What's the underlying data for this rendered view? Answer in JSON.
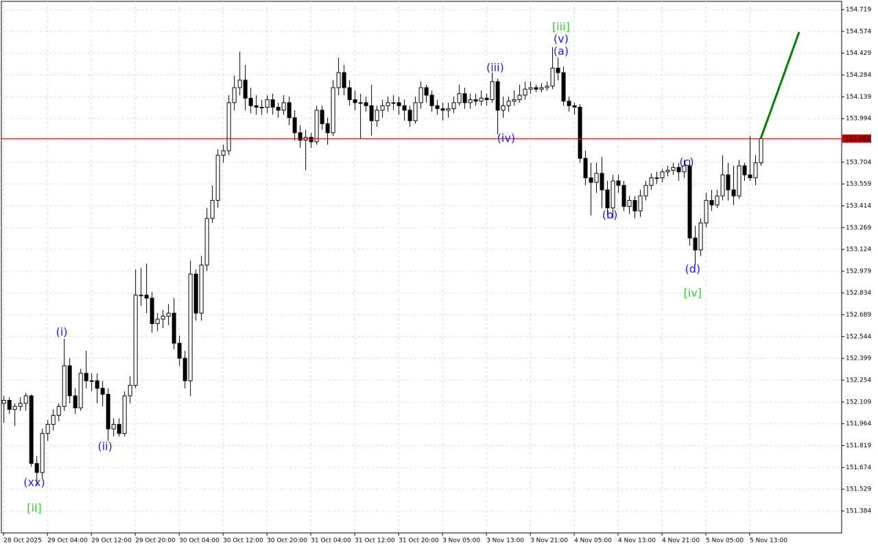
{
  "chart_data": {
    "type": "candlestick",
    "up_color": "#ffffff",
    "down_color": "#000000",
    "grid": true,
    "grid_color": "#e0e0e0",
    "xlim": [
      -0.4,
      152.75
    ],
    "ylim": [
      151.238,
      154.774
    ],
    "yticks": [
      154.719,
      154.574,
      154.429,
      154.284,
      154.139,
      153.994,
      153.849,
      153.704,
      153.559,
      153.414,
      153.269,
      153.124,
      152.979,
      152.834,
      152.689,
      152.544,
      152.399,
      152.254,
      152.109,
      151.964,
      151.819,
      151.674,
      151.529,
      151.384
    ],
    "xticks": [
      {
        "value": 0,
        "label": "28 Oct 2025"
      },
      {
        "value": 8,
        "label": "29 Oct 04:00"
      },
      {
        "value": 16,
        "label": "29 Oct 12:00"
      },
      {
        "value": 24,
        "label": "29 Oct 20:00"
      },
      {
        "value": 32,
        "label": "30 Oct 04:00"
      },
      {
        "value": 40,
        "label": "30 Oct 12:00"
      },
      {
        "value": 48,
        "label": "30 Oct 20:00"
      },
      {
        "value": 56,
        "label": "31 Oct 04:00"
      },
      {
        "value": 64,
        "label": "31 Oct 12:00"
      },
      {
        "value": 72,
        "label": "31 Oct 20:00"
      },
      {
        "value": 80,
        "label": "3 Nov 05:00"
      },
      {
        "value": 88,
        "label": "3 Nov 13:00"
      },
      {
        "value": 96,
        "label": "3 Nov 21:00"
      },
      {
        "value": 104,
        "label": "4 Nov 05:00"
      },
      {
        "value": 112,
        "label": "4 Nov 13:00"
      },
      {
        "value": 120,
        "label": "4 Nov 21:00"
      },
      {
        "value": 128,
        "label": "5 Nov 05:00"
      },
      {
        "value": 136,
        "label": "5 Nov 13:00"
      }
    ],
    "current_price": 153.861,
    "current_price_color": "#c00000",
    "forecast": {
      "x": [
        138,
        145
      ],
      "values": [
        153.861,
        154.57
      ],
      "color": "#008000"
    },
    "annotations": [
      {
        "text": "(xx)",
        "x": 5.6,
        "y": 151.57,
        "color": "#1a1aff"
      },
      {
        "text": "[ii]",
        "x": 5.6,
        "y": 151.4,
        "color": "#33cc33"
      },
      {
        "text": "(i)",
        "x": 10.6,
        "y": 152.57,
        "color": "#1a1aff"
      },
      {
        "text": "(ii)",
        "x": 18.5,
        "y": 151.81,
        "color": "#1a1aff"
      },
      {
        "text": "(iii)",
        "x": 89.6,
        "y": 154.33,
        "color": "#1a1aff"
      },
      {
        "text": "(iv)",
        "x": 91.6,
        "y": 153.86,
        "color": "#1a1aff"
      },
      {
        "text": "[iii]",
        "x": 101.6,
        "y": 154.6,
        "color": "#33cc33"
      },
      {
        "text": "(v)",
        "x": 101.6,
        "y": 154.52,
        "color": "#1a1aff"
      },
      {
        "text": "(a)",
        "x": 101.6,
        "y": 154.44,
        "color": "#1a1aff"
      },
      {
        "text": "(b)",
        "x": 110.5,
        "y": 153.35,
        "color": "#1a1aff"
      },
      {
        "text": "(c)",
        "x": 124.5,
        "y": 153.7,
        "color": "#1a1aff"
      },
      {
        "text": "(d)",
        "x": 125.6,
        "y": 152.99,
        "color": "#1a1aff"
      },
      {
        "text": "[iv]",
        "x": 125.6,
        "y": 152.83,
        "color": "#33cc33"
      }
    ],
    "candles": [
      [
        152.1,
        152.15,
        151.97,
        152.12
      ],
      [
        152.12,
        152.14,
        152.03,
        152.06
      ],
      [
        152.06,
        152.1,
        151.95,
        152.08
      ],
      [
        152.08,
        152.14,
        152.05,
        152.1
      ],
      [
        152.1,
        152.17,
        152.05,
        152.15
      ],
      [
        152.15,
        152.16,
        151.68,
        151.7
      ],
      [
        151.7,
        151.75,
        151.55,
        151.64
      ],
      [
        151.64,
        151.93,
        151.6,
        151.9
      ],
      [
        151.9,
        151.99,
        151.85,
        151.96
      ],
      [
        151.96,
        152.06,
        151.92,
        152.02
      ],
      [
        152.02,
        152.1,
        151.98,
        152.08
      ],
      [
        152.08,
        152.53,
        152.05,
        152.35
      ],
      [
        152.35,
        152.4,
        152.1,
        152.15
      ],
      [
        152.15,
        152.2,
        152.03,
        152.07
      ],
      [
        152.07,
        152.33,
        152.05,
        152.3
      ],
      [
        152.3,
        152.45,
        152.2,
        152.25
      ],
      [
        152.25,
        152.3,
        152.18,
        152.25
      ],
      [
        152.25,
        152.3,
        152.1,
        152.2
      ],
      [
        152.2,
        152.25,
        152.08,
        152.16
      ],
      [
        152.16,
        152.2,
        151.85,
        151.93
      ],
      [
        151.93,
        152.0,
        151.88,
        151.96
      ],
      [
        151.96,
        152.0,
        151.88,
        151.9
      ],
      [
        151.9,
        152.18,
        151.88,
        152.15
      ],
      [
        152.15,
        152.28,
        152.1,
        152.22
      ],
      [
        152.22,
        152.99,
        152.2,
        152.82
      ],
      [
        152.82,
        153.0,
        152.75,
        152.82
      ],
      [
        152.82,
        153.03,
        152.7,
        152.8
      ],
      [
        152.8,
        152.84,
        152.57,
        152.63
      ],
      [
        152.63,
        152.7,
        152.58,
        152.66
      ],
      [
        152.66,
        152.72,
        152.6,
        152.68
      ],
      [
        152.68,
        152.76,
        152.62,
        152.7
      ],
      [
        152.7,
        152.8,
        152.46,
        152.5
      ],
      [
        152.5,
        152.55,
        152.35,
        152.4
      ],
      [
        152.4,
        152.45,
        152.2,
        152.25
      ],
      [
        152.25,
        153.05,
        152.15,
        152.96
      ],
      [
        152.96,
        152.99,
        152.65,
        152.7
      ],
      [
        152.7,
        153.08,
        152.65,
        153.02
      ],
      [
        153.02,
        153.4,
        152.98,
        153.33
      ],
      [
        153.33,
        153.55,
        153.3,
        153.45
      ],
      [
        153.45,
        153.79,
        153.4,
        153.75
      ],
      [
        153.75,
        153.82,
        153.7,
        153.78
      ],
      [
        153.78,
        154.15,
        153.75,
        154.1
      ],
      [
        154.1,
        154.28,
        154.05,
        154.2
      ],
      [
        154.2,
        154.44,
        154.15,
        154.25
      ],
      [
        154.25,
        154.35,
        154.05,
        154.13
      ],
      [
        154.13,
        154.2,
        154.03,
        154.08
      ],
      [
        154.08,
        154.15,
        154.02,
        154.07
      ],
      [
        154.07,
        154.12,
        154.02,
        154.07
      ],
      [
        154.07,
        154.15,
        154.03,
        154.12
      ],
      [
        154.12,
        154.16,
        154.02,
        154.07
      ],
      [
        154.07,
        154.1,
        154.0,
        154.05
      ],
      [
        154.05,
        154.15,
        154.02,
        154.1
      ],
      [
        154.1,
        154.14,
        153.95,
        154.0
      ],
      [
        154.0,
        154.05,
        153.85,
        153.9
      ],
      [
        153.9,
        153.95,
        153.8,
        153.85
      ],
      [
        153.85,
        153.92,
        153.65,
        153.87
      ],
      [
        153.87,
        153.9,
        153.8,
        153.84
      ],
      [
        153.84,
        154.08,
        153.82,
        154.05
      ],
      [
        154.05,
        154.08,
        153.92,
        153.96
      ],
      [
        153.96,
        154.0,
        153.82,
        153.9
      ],
      [
        153.9,
        154.25,
        153.88,
        154.2
      ],
      [
        154.2,
        154.4,
        154.15,
        154.3
      ],
      [
        154.3,
        154.35,
        154.15,
        154.2
      ],
      [
        154.2,
        154.25,
        154.08,
        154.12
      ],
      [
        154.12,
        154.18,
        154.05,
        154.1
      ],
      [
        154.1,
        154.16,
        153.86,
        154.1
      ],
      [
        154.1,
        154.14,
        154.04,
        154.08
      ],
      [
        154.08,
        154.22,
        153.88,
        153.98
      ],
      [
        153.98,
        154.08,
        153.94,
        154.05
      ],
      [
        154.05,
        154.12,
        154.0,
        154.08
      ],
      [
        154.08,
        154.14,
        154.04,
        154.1
      ],
      [
        154.1,
        154.15,
        154.05,
        154.1
      ],
      [
        154.1,
        154.14,
        154.02,
        154.08
      ],
      [
        154.08,
        154.12,
        153.98,
        154.05
      ],
      [
        154.05,
        154.08,
        153.94,
        153.98
      ],
      [
        153.98,
        154.14,
        153.96,
        154.1
      ],
      [
        154.1,
        154.24,
        154.06,
        154.2
      ],
      [
        154.2,
        154.22,
        154.1,
        154.15
      ],
      [
        154.15,
        154.18,
        154.04,
        154.08
      ],
      [
        154.08,
        154.12,
        154.02,
        154.06
      ],
      [
        154.06,
        154.1,
        153.98,
        154.05
      ],
      [
        154.05,
        154.1,
        154.0,
        154.06
      ],
      [
        154.06,
        154.14,
        154.03,
        154.1
      ],
      [
        154.1,
        154.22,
        154.08,
        154.16
      ],
      [
        154.16,
        154.2,
        154.06,
        154.1
      ],
      [
        154.1,
        154.16,
        154.06,
        154.12
      ],
      [
        154.12,
        154.16,
        154.08,
        154.11
      ],
      [
        154.11,
        154.18,
        154.08,
        154.13
      ],
      [
        154.13,
        154.16,
        154.08,
        154.12
      ],
      [
        154.12,
        154.3,
        154.1,
        154.24
      ],
      [
        154.24,
        154.26,
        153.89,
        154.05
      ],
      [
        154.05,
        154.14,
        154.0,
        154.08
      ],
      [
        154.08,
        154.14,
        154.04,
        154.11
      ],
      [
        154.11,
        154.18,
        154.08,
        154.12
      ],
      [
        154.12,
        154.22,
        154.1,
        154.15
      ],
      [
        154.15,
        154.24,
        154.12,
        154.19
      ],
      [
        154.19,
        154.24,
        154.16,
        154.2
      ],
      [
        154.2,
        154.22,
        154.17,
        154.19
      ],
      [
        154.19,
        154.23,
        154.17,
        154.2
      ],
      [
        154.2,
        154.24,
        154.18,
        154.21
      ],
      [
        154.21,
        154.47,
        154.19,
        154.33
      ],
      [
        154.33,
        154.4,
        154.25,
        154.3
      ],
      [
        154.3,
        154.34,
        154.08,
        154.11
      ],
      [
        154.11,
        154.14,
        154.04,
        154.08
      ],
      [
        154.08,
        154.1,
        154.02,
        154.07
      ],
      [
        154.07,
        154.09,
        153.7,
        153.73
      ],
      [
        153.73,
        153.78,
        153.55,
        153.6
      ],
      [
        153.6,
        153.7,
        153.35,
        153.57
      ],
      [
        153.57,
        153.7,
        153.5,
        153.63
      ],
      [
        153.63,
        153.74,
        153.4,
        153.52
      ],
      [
        153.52,
        153.58,
        153.35,
        153.4
      ],
      [
        153.4,
        153.62,
        153.33,
        153.58
      ],
      [
        153.58,
        153.62,
        153.5,
        153.55
      ],
      [
        153.55,
        153.58,
        153.38,
        153.41
      ],
      [
        153.41,
        153.48,
        153.36,
        153.45
      ],
      [
        153.45,
        153.48,
        153.33,
        153.38
      ],
      [
        153.38,
        153.52,
        153.34,
        153.48
      ],
      [
        153.48,
        153.58,
        153.45,
        153.55
      ],
      [
        153.55,
        153.63,
        153.52,
        153.6
      ],
      [
        153.6,
        153.64,
        153.56,
        153.6
      ],
      [
        153.6,
        153.66,
        153.57,
        153.64
      ],
      [
        153.64,
        153.68,
        153.61,
        153.65
      ],
      [
        153.65,
        153.7,
        153.62,
        153.67
      ],
      [
        153.67,
        153.7,
        153.58,
        153.64
      ],
      [
        153.64,
        153.72,
        153.6,
        153.68
      ],
      [
        153.68,
        153.72,
        153.15,
        153.2
      ],
      [
        153.2,
        153.28,
        153.02,
        153.12
      ],
      [
        153.12,
        153.33,
        153.08,
        153.3
      ],
      [
        153.3,
        153.5,
        153.27,
        153.45
      ],
      [
        153.45,
        153.52,
        153.38,
        153.42
      ],
      [
        153.42,
        153.52,
        153.4,
        153.48
      ],
      [
        153.48,
        153.75,
        153.45,
        153.62
      ],
      [
        153.62,
        153.7,
        153.45,
        153.52
      ],
      [
        153.52,
        153.68,
        153.42,
        153.48
      ],
      [
        153.48,
        153.72,
        153.46,
        153.68
      ],
      [
        153.68,
        153.7,
        153.58,
        153.62
      ],
      [
        153.62,
        153.88,
        153.58,
        153.6
      ],
      [
        153.6,
        153.75,
        153.55,
        153.7
      ],
      [
        153.7,
        153.87,
        153.68,
        153.861
      ]
    ]
  }
}
